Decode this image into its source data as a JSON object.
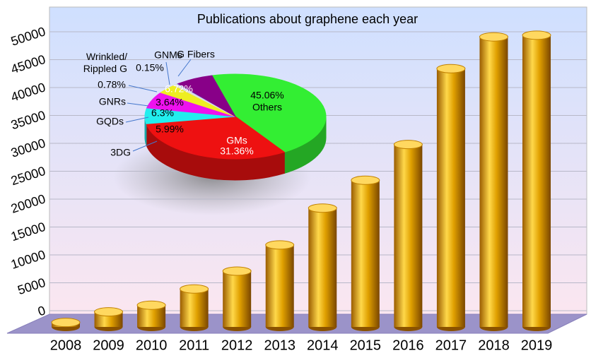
{
  "chart_data": [
    {
      "type": "bar3d",
      "title": "Publications about graphene each year",
      "categories": [
        "2008",
        "2009",
        "2010",
        "2011",
        "2012",
        "2013",
        "2014",
        "2015",
        "2016",
        "2017",
        "2018",
        "2019"
      ],
      "values": [
        800,
        2700,
        3900,
        6800,
        10000,
        14700,
        21300,
        26300,
        32700,
        46300,
        52000,
        52300
      ],
      "color": "#f0b020",
      "ylim": [
        0,
        55000
      ],
      "yticks": [
        0,
        5000,
        10000,
        15000,
        20000,
        25000,
        30000,
        35000,
        40000,
        45000,
        50000
      ],
      "grid": true
    },
    {
      "type": "pie3d",
      "categories": [
        "Others",
        "GMs",
        "3DG",
        "GQDs",
        "GNRs",
        "Wrinkled/ Rippled G",
        "GNMs",
        "G Fibers"
      ],
      "values": [
        45.06,
        31.36,
        5.99,
        6.3,
        3.64,
        0.78,
        0.15,
        6.72
      ],
      "value_labels": [
        "45.06%",
        "31.36%",
        "5.99%",
        "6.3%",
        "3.64%",
        "0.78%",
        "0.15%",
        "6.72%"
      ],
      "colors": [
        "#33ee33",
        "#ee1111",
        "#22eeee",
        "#ee11ee",
        "#eeee22",
        "#dddddd",
        "#6666ff",
        "#880088"
      ]
    }
  ]
}
